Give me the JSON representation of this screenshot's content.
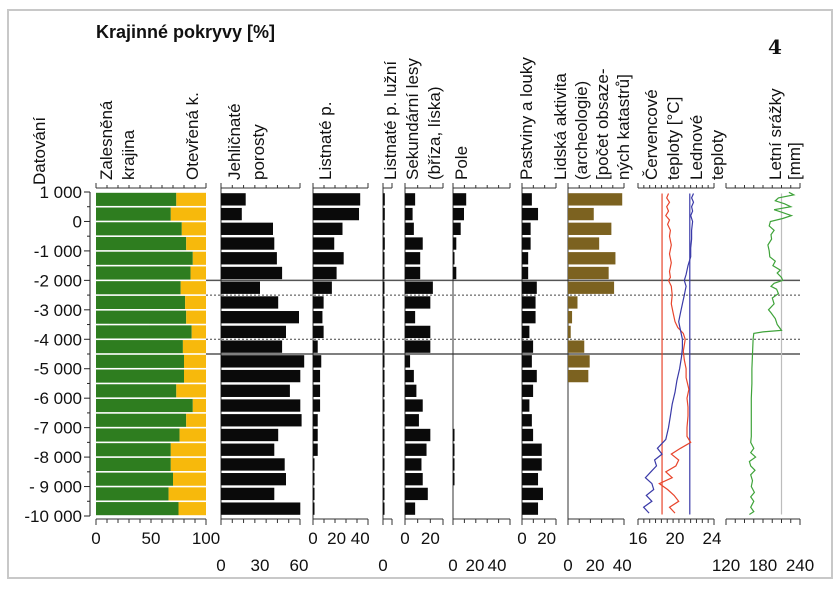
{
  "panel_number": "4",
  "chart_data": {
    "type": "bar",
    "title": "Krajinné pokryvy [%]",
    "y_axis": {
      "label": "Datování",
      "range": [
        1000,
        -10000
      ],
      "ticks": [
        1000,
        0,
        -1000,
        -2000,
        -3000,
        -4000,
        -5000,
        -6000,
        -7000,
        -8000,
        -9000,
        -10000
      ],
      "tick_labels": [
        "1 000",
        "0",
        "-1 000",
        "-2 000",
        "-3 000",
        "-4 000",
        "-5 000",
        "-6 000",
        "-7 000",
        "-8 000",
        "- 9 000",
        "-10 000"
      ]
    },
    "bar_interval_years": 500,
    "bar_centers": [
      750,
      250,
      -250,
      -750,
      -1250,
      -1750,
      -2250,
      -2750,
      -3250,
      -3750,
      -4250,
      -4750,
      -5250,
      -5750,
      -6250,
      -6750,
      -7250,
      -7750,
      -8250,
      -8750,
      -9250,
      -9750
    ],
    "reference_lines": [
      {
        "y": -2000,
        "style": "solid"
      },
      {
        "y": -2500,
        "style": "dashed"
      },
      {
        "y": -4000,
        "style": "dashed"
      },
      {
        "y": -4500,
        "style": "solid"
      }
    ],
    "panels": [
      {
        "id": "land-cover",
        "type": "stacked-bar",
        "labels": [
          "Zalesněná",
          "krajina"
        ],
        "labels2": [
          "Otevřená k."
        ],
        "xlim": [
          0,
          100
        ],
        "tick_labels": [
          "0",
          "50",
          "100"
        ],
        "tick_values": [
          0,
          50,
          100
        ],
        "tick_row": 1,
        "series": [
          {
            "name": "Zalesněná krajina",
            "color": "#2e7d1f",
            "values": [
              73,
              68,
              78,
              82,
              88,
              86,
              77,
              81,
              82,
              87,
              79,
              80,
              80,
              73,
              88,
              82,
              76,
              68,
              68,
              70,
              66,
              75
            ]
          },
          {
            "name": "Otevřená krajina",
            "color": "#f7b90c",
            "values": [
              27,
              32,
              22,
              18,
              12,
              14,
              23,
              19,
              18,
              13,
              21,
              20,
              20,
              27,
              12,
              18,
              24,
              32,
              32,
              30,
              34,
              25
            ]
          }
        ]
      },
      {
        "id": "conifers",
        "labels": [
          "Jehličnaté",
          "porosty"
        ],
        "xlim": [
          0,
          70
        ],
        "tick_labels": [
          "0",
          "30",
          "60"
        ],
        "tick_values": [
          0,
          30,
          60
        ],
        "tick_row": 2,
        "color": "#0a0a0a",
        "values": [
          19,
          16,
          40,
          41,
          43,
          47,
          30,
          44,
          60,
          50,
          47,
          64,
          61,
          53,
          61,
          62,
          44,
          41,
          49,
          50,
          41,
          61
        ]
      },
      {
        "id": "broadleaf",
        "labels": [
          "Listnaté p."
        ],
        "xlim": [
          0,
          50
        ],
        "tick_labels": [
          "0",
          "20",
          "40"
        ],
        "tick_values": [
          0,
          20,
          40
        ],
        "tick_row": 1,
        "color": "#0a0a0a",
        "values": [
          40,
          39,
          25,
          18,
          26,
          20,
          16,
          9,
          8,
          9,
          4,
          7,
          6,
          6,
          6,
          4,
          4,
          4,
          0.5,
          0.5,
          1,
          0.5
        ]
      },
      {
        "id": "floodplain",
        "labels": [
          "Listnaté p. lužní"
        ],
        "xlim": [
          0,
          10
        ],
        "tick_labels": [
          "0"
        ],
        "tick_values": [
          0
        ],
        "tick_row": 2,
        "color": "#0a0a0a",
        "values": [
          2,
          2,
          1,
          2,
          1,
          1,
          1,
          1,
          1,
          1,
          1,
          0.5,
          0.5,
          0.5,
          0.5,
          0.5,
          0.5,
          0.5,
          0.5,
          0.5,
          0.5,
          0.5
        ]
      },
      {
        "id": "secondary",
        "labels": [
          "Sekundární lesy",
          "(bříza, líska)"
        ],
        "xlim": [
          0,
          30
        ],
        "tick_labels": [
          "0",
          "20"
        ],
        "tick_values": [
          0,
          20
        ],
        "tick_row": 1,
        "color": "#0a0a0a",
        "values": [
          8,
          6,
          7,
          14,
          12,
          12,
          22,
          20,
          8,
          20,
          20,
          4,
          7,
          9,
          14,
          11,
          20,
          17,
          13,
          14,
          18,
          8
        ]
      },
      {
        "id": "fields",
        "labels": [
          "Pole"
        ],
        "xlim": [
          0,
          50
        ],
        "tick_labels": [
          "0",
          "20",
          "40"
        ],
        "tick_values": [
          0,
          20,
          40
        ],
        "tick_row": 2,
        "color": "#0a0a0a",
        "values": [
          12,
          10,
          7,
          3,
          0.5,
          3,
          0,
          0,
          0,
          0,
          0,
          0,
          0,
          0,
          0,
          0,
          1,
          1,
          0.5,
          1,
          0,
          0
        ]
      },
      {
        "id": "pastures",
        "labels": [
          "Pastviny a louky"
        ],
        "xlim": [
          0,
          30
        ],
        "tick_labels": [
          "0",
          "20"
        ],
        "tick_values": [
          0,
          20
        ],
        "tick_row": 1,
        "color": "#0a0a0a",
        "values": [
          8,
          13,
          7,
          7,
          5,
          5,
          12,
          11,
          11,
          6,
          9,
          8,
          12,
          9,
          6,
          8,
          9,
          16,
          16,
          13,
          17,
          13
        ]
      },
      {
        "id": "human-activity",
        "labels": [
          "Lidská aktivita",
          "(archeologie)",
          "[počet obsaze-",
          "ných katastrů]"
        ],
        "xlim": [
          0,
          45
        ],
        "tick_labels": [
          "0",
          "20",
          "40"
        ],
        "tick_values": [
          0,
          20,
          40
        ],
        "tick_row": 2,
        "color": "#7c6220",
        "values": [
          40,
          19,
          32,
          23,
          35,
          30,
          34,
          7,
          3,
          2,
          12,
          16,
          15,
          0,
          0,
          0,
          0,
          0,
          0,
          0,
          0,
          0
        ]
      }
    ],
    "temperature": {
      "labels_red": [
        "Červencové",
        "teploty [°C]"
      ],
      "labels_blue": [
        "Lednové",
        "teploty"
      ],
      "xlim": [
        16,
        24
      ],
      "tick_labels": [
        "16",
        "20",
        "24"
      ],
      "tick_values": [
        16,
        20,
        24
      ],
      "tick_row": 1,
      "july_reference": 18.6,
      "jan_reference": 21.6,
      "july_color": "#e8452c",
      "jan_color": "#3a3aa8",
      "july_series": [
        [
          950,
          19.3
        ],
        [
          800,
          19.1
        ],
        [
          650,
          19.4
        ],
        [
          500,
          19.1
        ],
        [
          350,
          19.3
        ],
        [
          200,
          19.0
        ],
        [
          50,
          19.4
        ],
        [
          -100,
          19.2
        ],
        [
          -300,
          19.5
        ],
        [
          -500,
          19.4
        ],
        [
          -800,
          19.6
        ],
        [
          -1100,
          19.4
        ],
        [
          -1400,
          19.6
        ],
        [
          -1700,
          19.4
        ],
        [
          -1900,
          19.5
        ],
        [
          -2000,
          19.3
        ],
        [
          -2200,
          19.6
        ],
        [
          -2500,
          19.7
        ],
        [
          -2800,
          19.6
        ],
        [
          -3100,
          19.8
        ],
        [
          -3400,
          20.0
        ],
        [
          -3600,
          20.3
        ],
        [
          -3800,
          20.9
        ],
        [
          -4000,
          21.1
        ],
        [
          -4200,
          21.0
        ],
        [
          -4400,
          20.9
        ],
        [
          -4700,
          21.0
        ],
        [
          -5000,
          21.2
        ],
        [
          -5300,
          21.2
        ],
        [
          -5700,
          21.5
        ],
        [
          -6000,
          21.3
        ],
        [
          -6300,
          21.4
        ],
        [
          -6600,
          21.4
        ],
        [
          -7000,
          21.3
        ],
        [
          -7300,
          21.3
        ],
        [
          -7500,
          21.7
        ],
        [
          -7700,
          20.6
        ],
        [
          -7900,
          19.6
        ],
        [
          -8100,
          20.4
        ],
        [
          -8300,
          20.1
        ],
        [
          -8500,
          19.0
        ],
        [
          -8700,
          19.7
        ],
        [
          -8900,
          18.3
        ],
        [
          -9100,
          19.2
        ],
        [
          -9300,
          19.9
        ],
        [
          -9500,
          20.4
        ],
        [
          -9700,
          19.4
        ],
        [
          -9900,
          20.0
        ]
      ],
      "jan_series": [
        [
          950,
          22.0
        ],
        [
          800,
          21.8
        ],
        [
          650,
          22.0
        ],
        [
          500,
          21.8
        ],
        [
          350,
          21.9
        ],
        [
          200,
          21.7
        ],
        [
          0,
          21.9
        ],
        [
          -300,
          21.8
        ],
        [
          -600,
          21.8
        ],
        [
          -900,
          21.7
        ],
        [
          -1200,
          21.7
        ],
        [
          -1500,
          21.4
        ],
        [
          -1800,
          21.2
        ],
        [
          -2000,
          21.0
        ],
        [
          -2200,
          21.2
        ],
        [
          -2500,
          21.0
        ],
        [
          -2800,
          20.8
        ],
        [
          -3100,
          20.6
        ],
        [
          -3400,
          20.4
        ],
        [
          -3700,
          20.6
        ],
        [
          -4000,
          20.8
        ],
        [
          -4300,
          20.8
        ],
        [
          -4600,
          20.7
        ],
        [
          -5000,
          20.5
        ],
        [
          -5400,
          20.2
        ],
        [
          -5800,
          20.0
        ],
        [
          -6200,
          19.7
        ],
        [
          -6600,
          19.5
        ],
        [
          -7000,
          19.3
        ],
        [
          -7400,
          19.0
        ],
        [
          -7700,
          18.1
        ],
        [
          -7900,
          18.6
        ],
        [
          -8100,
          17.8
        ],
        [
          -8300,
          18.0
        ],
        [
          -8500,
          17.4
        ],
        [
          -8700,
          16.8
        ],
        [
          -8900,
          17.5
        ],
        [
          -9100,
          17.7
        ],
        [
          -9300,
          16.9
        ],
        [
          -9500,
          17.5
        ],
        [
          -9700,
          16.6
        ],
        [
          -9900,
          17.2
        ]
      ]
    },
    "precipitation": {
      "labels": [
        "Letní srážky",
        "[mm]"
      ],
      "xlim": [
        120,
        240
      ],
      "tick_labels": [
        "120",
        "180",
        "240"
      ],
      "tick_values": [
        120,
        180,
        240
      ],
      "tick_row": 2,
      "reference": 210,
      "color": "#3fa33a",
      "series": [
        [
          990,
          222
        ],
        [
          900,
          230
        ],
        [
          800,
          205
        ],
        [
          700,
          200
        ],
        [
          600,
          215
        ],
        [
          500,
          225
        ],
        [
          400,
          198
        ],
        [
          300,
          212
        ],
        [
          200,
          226
        ],
        [
          100,
          212
        ],
        [
          0,
          192
        ],
        [
          -150,
          190
        ],
        [
          -300,
          198
        ],
        [
          -450,
          193
        ],
        [
          -600,
          194
        ],
        [
          -800,
          188
        ],
        [
          -1000,
          190
        ],
        [
          -1200,
          191
        ],
        [
          -1350,
          200
        ],
        [
          -1500,
          196
        ],
        [
          -1650,
          208
        ],
        [
          -1750,
          203
        ],
        [
          -1900,
          210
        ],
        [
          -2000,
          212
        ],
        [
          -2100,
          198
        ],
        [
          -2200,
          193
        ],
        [
          -2300,
          202
        ],
        [
          -2450,
          205
        ],
        [
          -2600,
          195
        ],
        [
          -2800,
          198
        ],
        [
          -3000,
          189
        ],
        [
          -3100,
          193
        ],
        [
          -3300,
          200
        ],
        [
          -3500,
          203
        ],
        [
          -3700,
          210
        ],
        [
          -3750,
          180
        ],
        [
          -3800,
          165
        ],
        [
          -4000,
          164
        ],
        [
          -4500,
          163
        ],
        [
          -5000,
          162
        ],
        [
          -5500,
          162
        ],
        [
          -6000,
          161
        ],
        [
          -6500,
          161
        ],
        [
          -7000,
          161
        ],
        [
          -7300,
          161
        ],
        [
          -7500,
          160
        ],
        [
          -7700,
          165
        ],
        [
          -7850,
          160
        ],
        [
          -8000,
          168
        ],
        [
          -8150,
          158
        ],
        [
          -8300,
          160
        ],
        [
          -8450,
          167
        ],
        [
          -8600,
          160
        ],
        [
          -8800,
          163
        ],
        [
          -9000,
          161
        ],
        [
          -9200,
          166
        ],
        [
          -9350,
          160
        ],
        [
          -9500,
          165
        ],
        [
          -9700,
          160
        ],
        [
          -9850,
          165
        ],
        [
          -9950,
          158
        ]
      ]
    }
  }
}
